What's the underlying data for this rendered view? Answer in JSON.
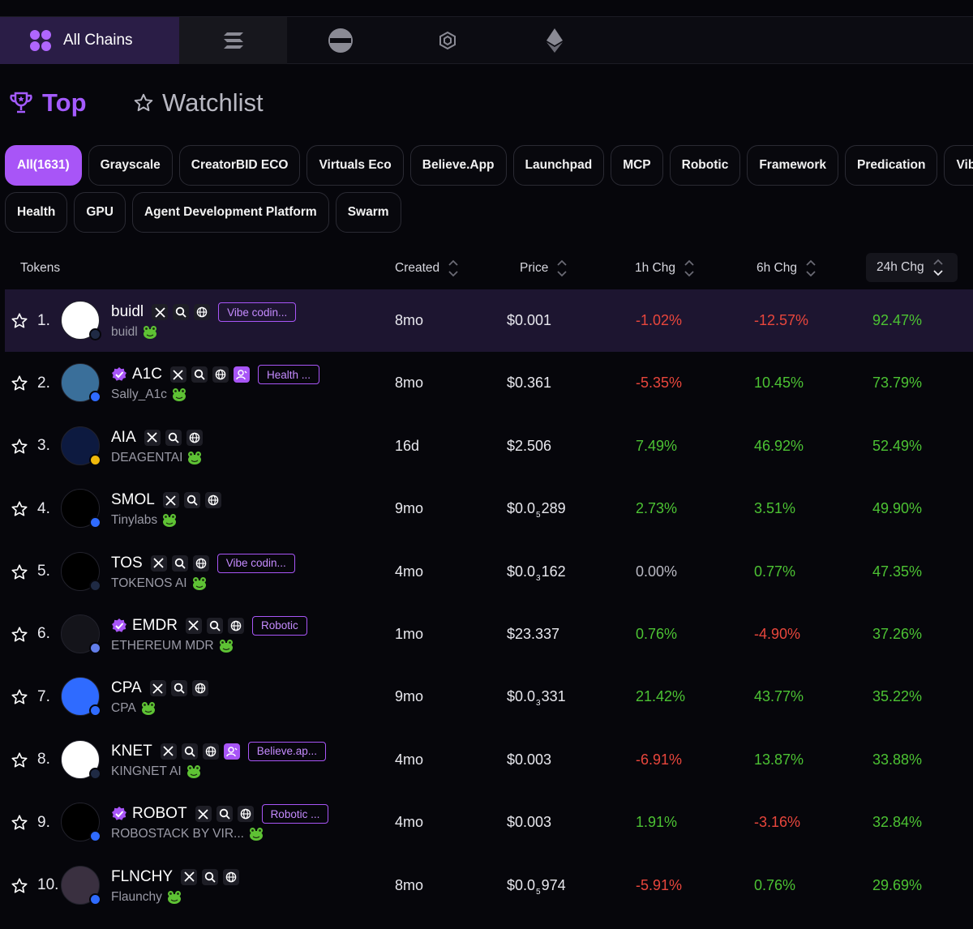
{
  "chains": {
    "all_label": "All Chains",
    "tabs": [
      "solana-icon",
      "base-icon",
      "bnb-icon",
      "ethereum-icon"
    ]
  },
  "modes": {
    "top": "Top",
    "watchlist": "Watchlist"
  },
  "filters": {
    "row1": [
      "All(1631)",
      "Grayscale",
      "CreatorBID ECO",
      "Virtuals Eco",
      "Believe.App",
      "Launchpad",
      "MCP",
      "Robotic",
      "Framework",
      "Predication",
      "Vib"
    ],
    "row2": [
      "Health",
      "GPU",
      "Agent Development Platform",
      "Swarm"
    ]
  },
  "table": {
    "headers": {
      "tokens": "Tokens",
      "created": "Created",
      "price": "Price",
      "h1": "1h Chg",
      "h6": "6h Chg",
      "h24": "24h Chg"
    },
    "rows": [
      {
        "rank": "1.",
        "symbol": "buidl",
        "name": "buidl",
        "verified": false,
        "robot": false,
        "badge": "Vibe codin...",
        "created": "8mo",
        "price_pre": "$0.001",
        "price_sub": "",
        "price_post": "",
        "h1": "-1.02%",
        "h6": "-12.57%",
        "h24": "92.47%",
        "avatar_color": "#ffffff",
        "chain_color": "#1f2a44"
      },
      {
        "rank": "2.",
        "symbol": "A1C",
        "name": "Sally_A1c",
        "verified": true,
        "robot": true,
        "badge": "Health ...",
        "created": "8mo",
        "price_pre": "$0.361",
        "price_sub": "",
        "price_post": "",
        "h1": "-5.35%",
        "h6": "10.45%",
        "h24": "73.79%",
        "avatar_color": "#3a6f9a",
        "chain_color": "#2f6bff"
      },
      {
        "rank": "3.",
        "symbol": "AIA",
        "name": "DEAGENTAI",
        "verified": false,
        "robot": false,
        "badge": "",
        "created": "16d",
        "price_pre": "$2.506",
        "price_sub": "",
        "price_post": "",
        "h1": "7.49%",
        "h6": "46.92%",
        "h24": "52.49%",
        "avatar_color": "#0d1a40",
        "chain_color": "#f0b90b"
      },
      {
        "rank": "4.",
        "symbol": "SMOL",
        "name": "Tinylabs",
        "verified": false,
        "robot": false,
        "badge": "",
        "created": "9mo",
        "price_pre": "$0.0",
        "price_sub": "5",
        "price_post": "289",
        "h1": "2.73%",
        "h6": "3.51%",
        "h24": "49.90%",
        "avatar_color": "#000000",
        "chain_color": "#2f6bff"
      },
      {
        "rank": "5.",
        "symbol": "TOS",
        "name": "TOKENOS AI",
        "verified": false,
        "robot": false,
        "badge": "Vibe codin...",
        "created": "4mo",
        "price_pre": "$0.0",
        "price_sub": "3",
        "price_post": "162",
        "h1": "0.00%",
        "h6": "0.77%",
        "h24": "47.35%",
        "avatar_color": "#000000",
        "chain_color": "#1f2a44"
      },
      {
        "rank": "6.",
        "symbol": "EMDR",
        "name": "ETHEREUM MDR",
        "verified": true,
        "robot": false,
        "badge": "Robotic",
        "created": "1mo",
        "price_pre": "$23.337",
        "price_sub": "",
        "price_post": "",
        "h1": "0.76%",
        "h6": "-4.90%",
        "h24": "37.26%",
        "avatar_color": "#14141a",
        "chain_color": "#627eea"
      },
      {
        "rank": "7.",
        "symbol": "CPA",
        "name": "CPA",
        "verified": false,
        "robot": false,
        "badge": "",
        "created": "9mo",
        "price_pre": "$0.0",
        "price_sub": "3",
        "price_post": "331",
        "h1": "21.42%",
        "h6": "43.77%",
        "h24": "35.22%",
        "avatar_color": "#2f6bff",
        "chain_color": "#2f6bff"
      },
      {
        "rank": "8.",
        "symbol": "KNET",
        "name": "KINGNET AI",
        "verified": false,
        "robot": true,
        "badge": "Believe.ap...",
        "created": "4mo",
        "price_pre": "$0.003",
        "price_sub": "",
        "price_post": "",
        "h1": "-6.91%",
        "h6": "13.87%",
        "h24": "33.88%",
        "avatar_color": "#ffffff",
        "chain_color": "#1f2a44"
      },
      {
        "rank": "9.",
        "symbol": "ROBOT",
        "name": "ROBOSTACK BY VIR...",
        "verified": true,
        "robot": false,
        "badge": "Robotic ...",
        "created": "4mo",
        "price_pre": "$0.003",
        "price_sub": "",
        "price_post": "",
        "h1": "1.91%",
        "h6": "-3.16%",
        "h24": "32.84%",
        "avatar_color": "#000000",
        "chain_color": "#2f6bff"
      },
      {
        "rank": "10.",
        "symbol": "FLNCHY",
        "name": "Flaunchy",
        "verified": false,
        "robot": false,
        "badge": "",
        "created": "8mo",
        "price_pre": "$0.0",
        "price_sub": "5",
        "price_post": "974",
        "h1": "-5.91%",
        "h6": "0.76%",
        "h24": "29.69%",
        "avatar_color": "#3a3040",
        "chain_color": "#2f6bff"
      }
    ]
  }
}
